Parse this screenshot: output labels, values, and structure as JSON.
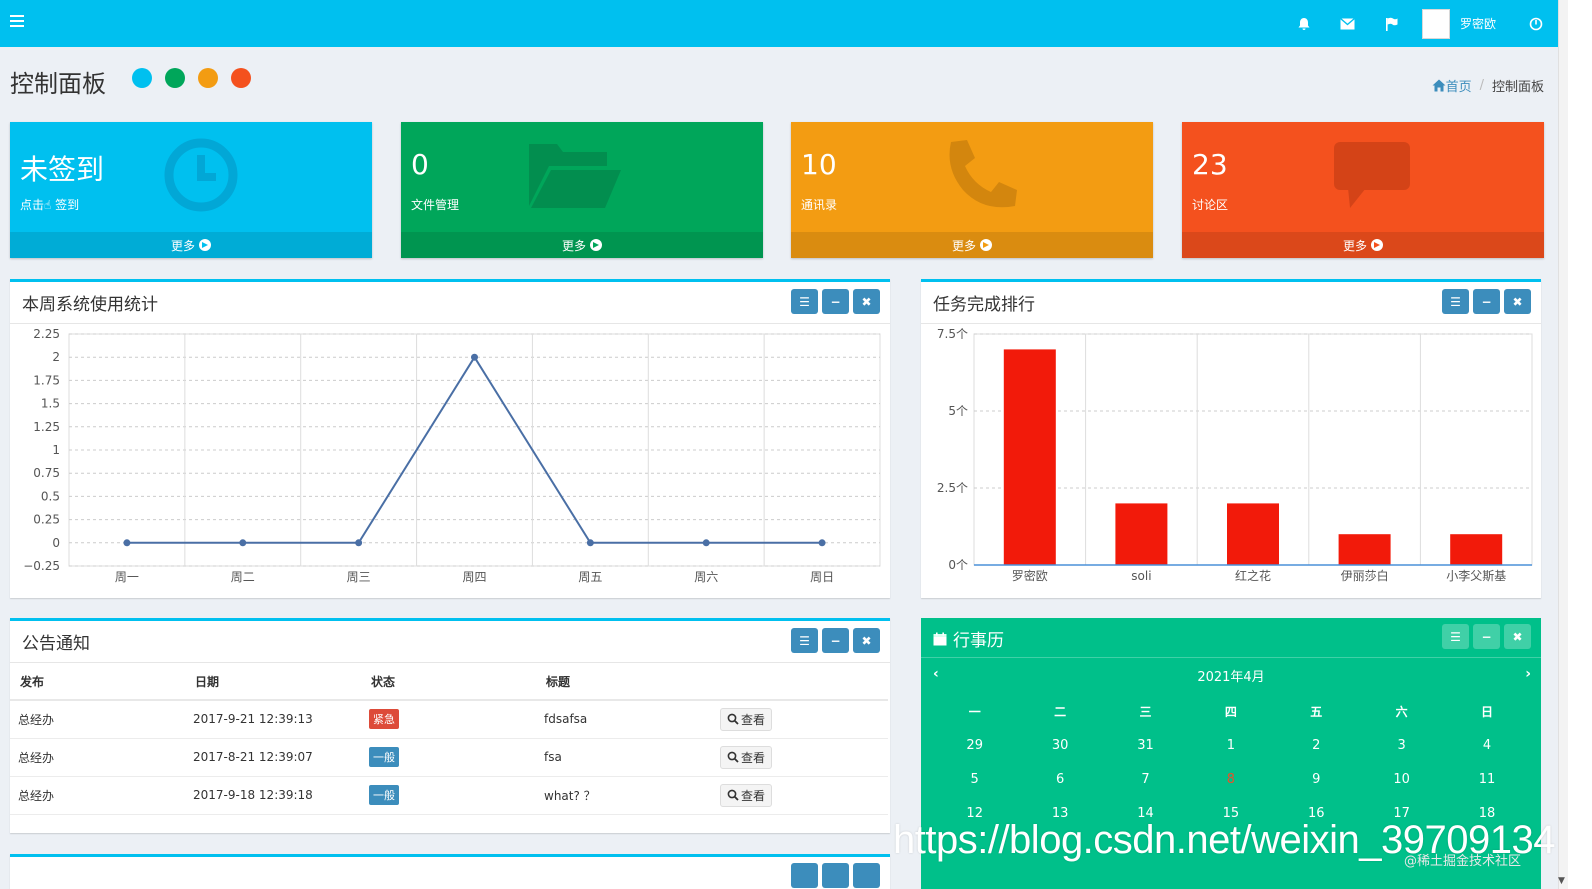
{
  "header": {
    "user_name": "罗密欧"
  },
  "page": {
    "title": "控制面板"
  },
  "theme_colors": [
    "#00c0ef",
    "#00a65a",
    "#f39c12",
    "#f4511e"
  ],
  "breadcrumb": {
    "home": "首页",
    "current": "控制面板"
  },
  "stat_boxes": [
    {
      "value": "未签到",
      "label_prefix": "点击",
      "label_suffix": "签到",
      "footer": "更多",
      "color": "#00c0ef",
      "icon": "clock-icon"
    },
    {
      "value": "0",
      "label": "文件管理",
      "footer": "更多",
      "color": "#00a65a",
      "icon": "folder-open-icon"
    },
    {
      "value": "10",
      "label": "通讯录",
      "footer": "更多",
      "color": "#f39c12",
      "icon": "phone-icon"
    },
    {
      "value": "23",
      "label": "讨论区",
      "footer": "更多",
      "color": "#f4511e",
      "icon": "comment-icon"
    }
  ],
  "weekly_panel": {
    "title": "本周系统使用统计"
  },
  "ranking_panel": {
    "title": "任务完成排行"
  },
  "notice_panel": {
    "title": "公告通知",
    "columns": [
      "发布",
      "日期",
      "状态",
      "标题"
    ],
    "rows": [
      {
        "publisher": "总经办",
        "date": "2017-9-21 12:39:13",
        "status": "紧急",
        "status_color": "#dd4b39",
        "title": "fdsafsa",
        "action": "查看"
      },
      {
        "publisher": "总经办",
        "date": "2017-8-21 12:39:07",
        "status": "一般",
        "status_color": "#3c8dbc",
        "title": "fsa",
        "action": "查看"
      },
      {
        "publisher": "总经办",
        "date": "2017-9-18 12:39:18",
        "status": "一般",
        "status_color": "#3c8dbc",
        "title": "what? ？",
        "action": "查看"
      }
    ]
  },
  "calendar": {
    "title": "行事历",
    "month": "2021年4月",
    "weekdays": [
      "一",
      "二",
      "三",
      "四",
      "五",
      "六",
      "日"
    ],
    "weeks": [
      [
        "29",
        "30",
        "31",
        "1",
        "2",
        "3",
        "4"
      ],
      [
        "5",
        "6",
        "7",
        "8",
        "9",
        "10",
        "11"
      ],
      [
        "12",
        "13",
        "14",
        "15",
        "16",
        "17",
        "18"
      ]
    ],
    "today": "8"
  },
  "watermark": {
    "url": "https://blog.csdn.net/weixin_39709134",
    "small": "@稀土掘金技术社区"
  },
  "chart_data": [
    {
      "type": "line",
      "categories": [
        "周一",
        "周二",
        "周三",
        "周四",
        "周五",
        "周六",
        "周日"
      ],
      "series": [
        {
          "values": [
            0,
            0,
            0,
            2,
            0,
            0,
            0
          ]
        }
      ],
      "ylim": [
        -0.25,
        2.25
      ],
      "yticks": [
        "2.25",
        "2",
        "1.75",
        "1.5",
        "1.25",
        "1",
        "0.75",
        "0.5",
        "0.25",
        "0",
        "−0.25"
      ],
      "grid": true,
      "line_color": "#4a6fa5"
    },
    {
      "type": "bar",
      "categories": [
        "罗密欧",
        "soli",
        "红之花",
        "伊丽莎白",
        "小李父斯基"
      ],
      "values": [
        7,
        2,
        2,
        1,
        1
      ],
      "ylim": [
        0,
        7.5
      ],
      "yticks": [
        "7.5个",
        "5个",
        "2.5个",
        "0个"
      ],
      "grid": true,
      "bar_color": "#f21a0a"
    }
  ]
}
